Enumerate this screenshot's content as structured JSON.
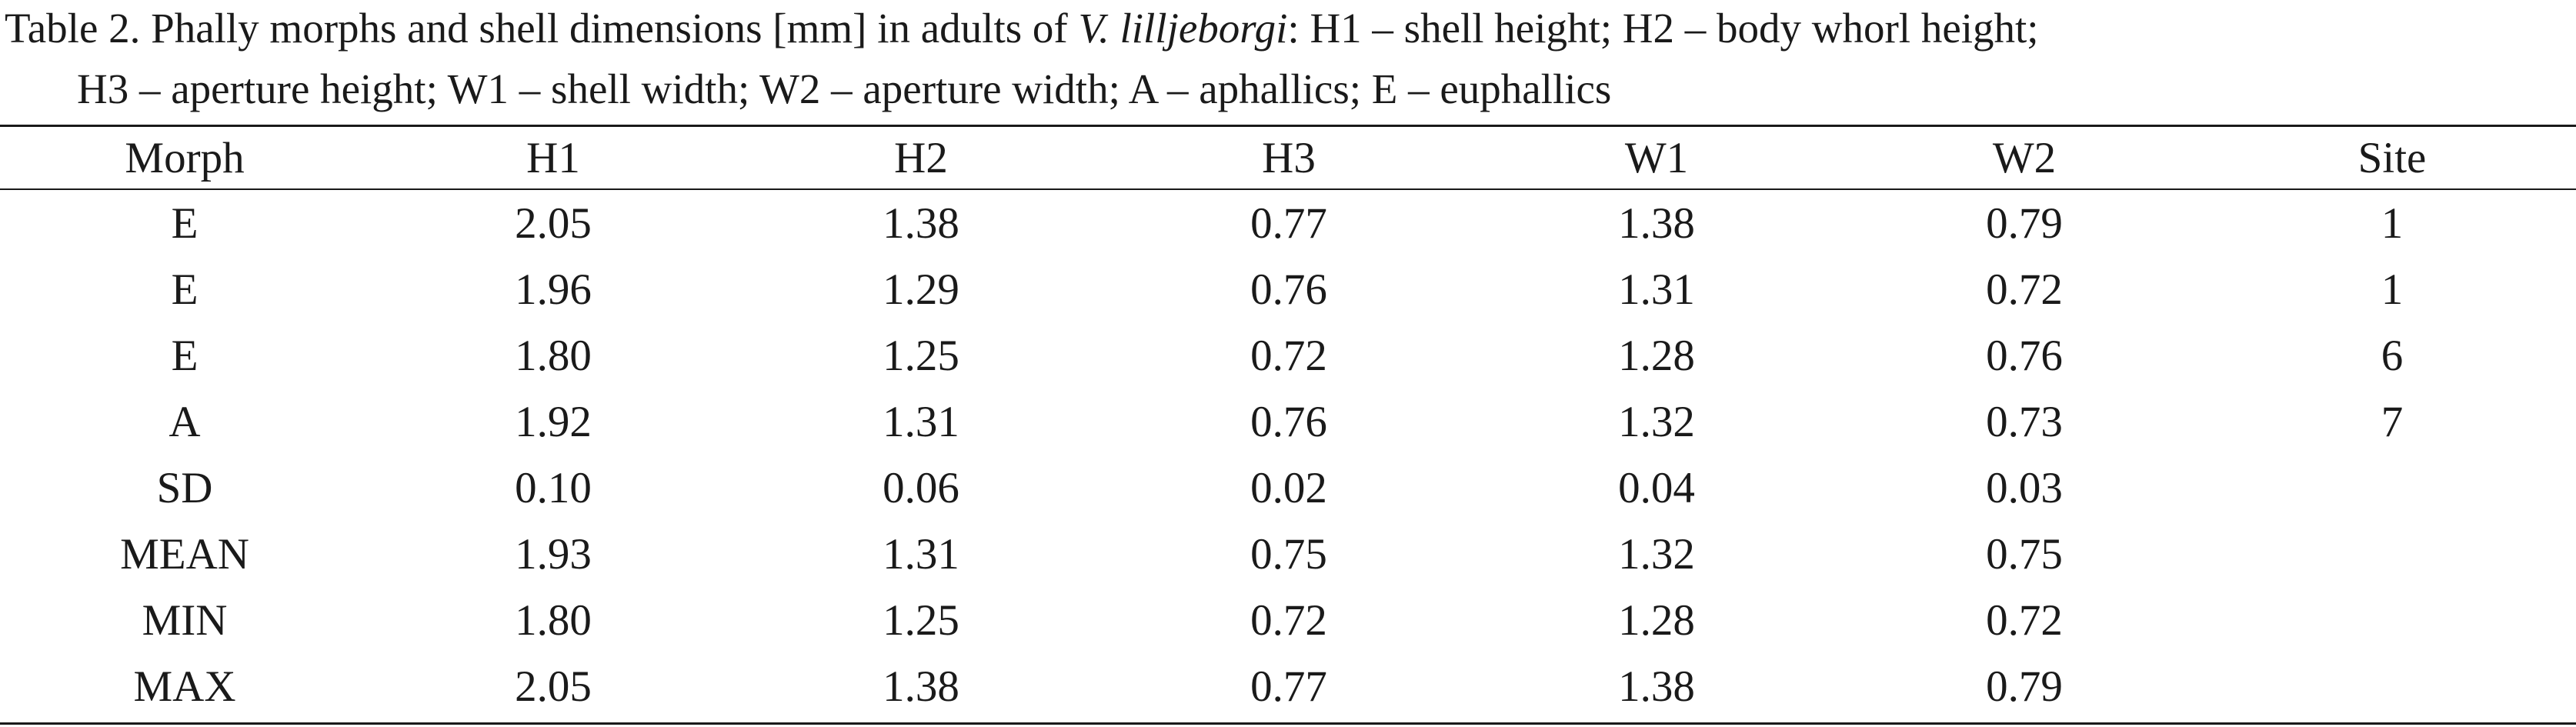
{
  "caption": {
    "label": "Table 2.",
    "text_before_species": " Phally morphs and shell dimensions [mm] in adults of ",
    "species": "V. lilljeborgi",
    "text_after_species": ": H1 – shell height; H2 – body whorl height;",
    "line2": "H3 – aperture height; W1 – shell width; W2 – aperture width; A – aphallics; E – euphallics"
  },
  "table": {
    "headers": [
      "Morph",
      "H1",
      "H2",
      "H3",
      "W1",
      "W2",
      "Site"
    ],
    "rows": [
      [
        "E",
        "2.05",
        "1.38",
        "0.77",
        "1.38",
        "0.79",
        "1"
      ],
      [
        "E",
        "1.96",
        "1.29",
        "0.76",
        "1.31",
        "0.72",
        "1"
      ],
      [
        "E",
        "1.80",
        "1.25",
        "0.72",
        "1.28",
        "0.76",
        "6"
      ],
      [
        "A",
        "1.92",
        "1.31",
        "0.76",
        "1.32",
        "0.73",
        "7"
      ],
      [
        "SD",
        "0.10",
        "0.06",
        "0.02",
        "0.04",
        "0.03",
        ""
      ],
      [
        "MEAN",
        "1.93",
        "1.31",
        "0.75",
        "1.32",
        "0.75",
        ""
      ],
      [
        "MIN",
        "1.80",
        "1.25",
        "0.72",
        "1.28",
        "0.72",
        ""
      ],
      [
        "MAX",
        "2.05",
        "1.38",
        "0.77",
        "1.38",
        "0.79",
        ""
      ]
    ]
  }
}
